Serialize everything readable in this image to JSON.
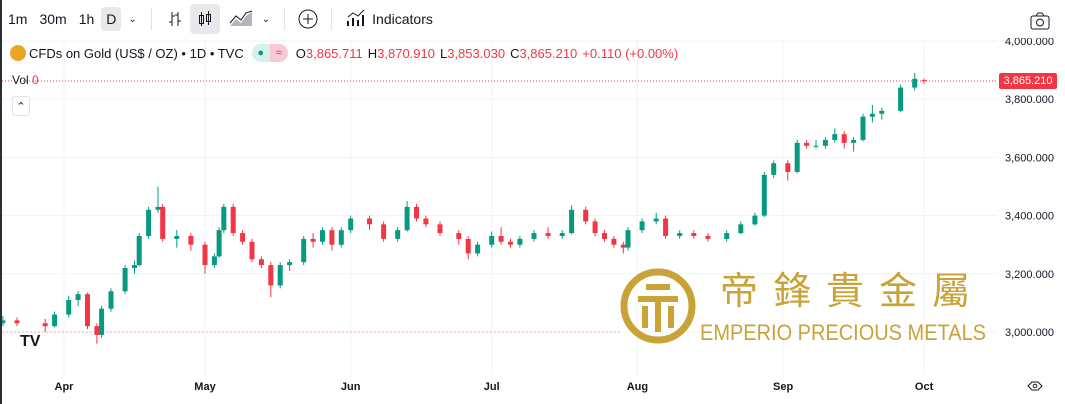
{
  "toolbar": {
    "intervals": [
      "1m",
      "30m",
      "1h",
      "D"
    ],
    "indicators_label": "Indicators",
    "icons": [
      "bars-icon",
      "candles-icon",
      "area-chart-icon",
      "chevron-down-icon",
      "add-compare-icon",
      "indicators-icon",
      "camera-icon"
    ]
  },
  "legend": {
    "symbol": "CFDs on Gold (US$ / OZ) • 1D • TVC",
    "o_label": "O",
    "o": "3,865.711",
    "h_label": "H",
    "h": "3,870.910",
    "l_label": "L",
    "l": "3,853.030",
    "c_label": "C",
    "c": "3,865.210",
    "change": "+0.110 (+0.00%)",
    "vol_label": "Vol",
    "vol": "0"
  },
  "watermark": {
    "chinese": "帝鋒貴金屬",
    "text": "EMPERIO PRECIOUS METALS"
  },
  "colors": {
    "up": "#089981",
    "down": "#f23645",
    "gold": "#c9a338"
  },
  "chart_data": {
    "type": "candlestick",
    "title": "CFDs on Gold (US$ / OZ)",
    "yticks": [
      "4,000.000",
      "3,800.000",
      "3,600.000",
      "3,400.000",
      "3,200.000",
      "3,000.000"
    ],
    "ytick_values": [
      4000,
      3800,
      3600,
      3400,
      3200,
      3000
    ],
    "xticks": [
      "Apr",
      "May",
      "Jun",
      "Jul",
      "Aug",
      "Sep",
      "Oct"
    ],
    "xtick_dates": [
      "2025-04-01",
      "2025-05-01",
      "2025-06-01",
      "2025-07-01",
      "2025-08-01",
      "2025-09-01",
      "2025-10-01"
    ],
    "ylim": [
      2880,
      4040
    ],
    "last_price": "3,865.210",
    "candles": [
      [
        "2025-03-19",
        3030,
        3055,
        3020,
        3040
      ],
      [
        "2025-03-22",
        3040,
        3050,
        3020,
        3030
      ],
      [
        "2025-03-28",
        3030,
        3045,
        3000,
        3020
      ],
      [
        "2025-03-30",
        3020,
        3070,
        3015,
        3060
      ],
      [
        "2025-04-02",
        3060,
        3125,
        3050,
        3110
      ],
      [
        "2025-04-04",
        3110,
        3140,
        3090,
        3130
      ],
      [
        "2025-04-06",
        3130,
        3135,
        3010,
        3020
      ],
      [
        "2025-04-08",
        3020,
        3030,
        2960,
        2990
      ],
      [
        "2025-04-09",
        2990,
        3090,
        2980,
        3080
      ],
      [
        "2025-04-11",
        3080,
        3150,
        3070,
        3140
      ],
      [
        "2025-04-14",
        3140,
        3230,
        3130,
        3220
      ],
      [
        "2025-04-16",
        3220,
        3245,
        3200,
        3230
      ],
      [
        "2025-04-17",
        3230,
        3340,
        3225,
        3330
      ],
      [
        "2025-04-19",
        3330,
        3430,
        3320,
        3420
      ],
      [
        "2025-04-21",
        3420,
        3500,
        3410,
        3430
      ],
      [
        "2025-04-22",
        3430,
        3440,
        3310,
        3320
      ],
      [
        "2025-04-25",
        3320,
        3350,
        3290,
        3330
      ],
      [
        "2025-04-28",
        3330,
        3340,
        3280,
        3300
      ],
      [
        "2025-05-01",
        3300,
        3310,
        3200,
        3230
      ],
      [
        "2025-05-03",
        3230,
        3270,
        3220,
        3260
      ],
      [
        "2025-05-04",
        3260,
        3360,
        3255,
        3350
      ],
      [
        "2025-05-05",
        3350,
        3440,
        3340,
        3430
      ],
      [
        "2025-05-07",
        3430,
        3440,
        3330,
        3340
      ],
      [
        "2025-05-09",
        3340,
        3350,
        3300,
        3310
      ],
      [
        "2025-05-11",
        3310,
        3320,
        3240,
        3250
      ],
      [
        "2025-05-13",
        3250,
        3260,
        3220,
        3230
      ],
      [
        "2025-05-15",
        3230,
        3240,
        3120,
        3160
      ],
      [
        "2025-05-17",
        3160,
        3240,
        3150,
        3230
      ],
      [
        "2025-05-19",
        3230,
        3250,
        3210,
        3240
      ],
      [
        "2025-05-22",
        3240,
        3330,
        3230,
        3320
      ],
      [
        "2025-05-24",
        3320,
        3340,
        3290,
        3310
      ],
      [
        "2025-05-26",
        3310,
        3360,
        3300,
        3350
      ],
      [
        "2025-05-28",
        3350,
        3360,
        3280,
        3300
      ],
      [
        "2025-05-30",
        3300,
        3360,
        3290,
        3350
      ],
      [
        "2025-06-01",
        3350,
        3400,
        3340,
        3390
      ],
      [
        "2025-06-05",
        3390,
        3400,
        3350,
        3370
      ],
      [
        "2025-06-08",
        3370,
        3380,
        3310,
        3320
      ],
      [
        "2025-06-11",
        3320,
        3360,
        3310,
        3350
      ],
      [
        "2025-06-13",
        3350,
        3450,
        3345,
        3430
      ],
      [
        "2025-06-15",
        3430,
        3440,
        3380,
        3390
      ],
      [
        "2025-06-17",
        3390,
        3400,
        3360,
        3370
      ],
      [
        "2025-06-20",
        3370,
        3380,
        3330,
        3340
      ],
      [
        "2025-06-24",
        3340,
        3350,
        3300,
        3320
      ],
      [
        "2025-06-26",
        3320,
        3330,
        3250,
        3270
      ],
      [
        "2025-06-28",
        3270,
        3310,
        3260,
        3300
      ],
      [
        "2025-07-01",
        3300,
        3345,
        3290,
        3330
      ],
      [
        "2025-07-03",
        3330,
        3360,
        3300,
        3310
      ],
      [
        "2025-07-05",
        3310,
        3320,
        3290,
        3300
      ],
      [
        "2025-07-07",
        3300,
        3330,
        3290,
        3320
      ],
      [
        "2025-07-10",
        3320,
        3350,
        3310,
        3340
      ],
      [
        "2025-07-13",
        3340,
        3360,
        3320,
        3330
      ],
      [
        "2025-07-16",
        3330,
        3350,
        3320,
        3340
      ],
      [
        "2025-07-18",
        3340,
        3435,
        3335,
        3420
      ],
      [
        "2025-07-21",
        3420,
        3430,
        3370,
        3380
      ],
      [
        "2025-07-23",
        3380,
        3390,
        3330,
        3340
      ],
      [
        "2025-07-25",
        3340,
        3350,
        3310,
        3320
      ],
      [
        "2025-07-27",
        3320,
        3330,
        3290,
        3300
      ],
      [
        "2025-07-29",
        3300,
        3310,
        3270,
        3290
      ],
      [
        "2025-07-30",
        3290,
        3360,
        3280,
        3350
      ],
      [
        "2025-08-02",
        3350,
        3390,
        3340,
        3380
      ],
      [
        "2025-08-05",
        3380,
        3410,
        3370,
        3390
      ],
      [
        "2025-08-07",
        3390,
        3400,
        3320,
        3330
      ],
      [
        "2025-08-10",
        3330,
        3350,
        3320,
        3340
      ],
      [
        "2025-08-13",
        3340,
        3350,
        3320,
        3330
      ],
      [
        "2025-08-16",
        3330,
        3340,
        3310,
        3320
      ],
      [
        "2025-08-20",
        3320,
        3350,
        3310,
        3340
      ],
      [
        "2025-08-23",
        3340,
        3380,
        3335,
        3370
      ],
      [
        "2025-08-26",
        3370,
        3410,
        3365,
        3400
      ],
      [
        "2025-08-28",
        3400,
        3550,
        3395,
        3540
      ],
      [
        "2025-08-30",
        3540,
        3590,
        3530,
        3580
      ],
      [
        "2025-09-02",
        3580,
        3590,
        3520,
        3550
      ],
      [
        "2025-09-04",
        3550,
        3660,
        3545,
        3650
      ],
      [
        "2025-09-06",
        3650,
        3660,
        3630,
        3640
      ],
      [
        "2025-09-08",
        3640,
        3660,
        3630,
        3640
      ],
      [
        "2025-09-10",
        3640,
        3670,
        3630,
        3660
      ],
      [
        "2025-09-12",
        3660,
        3700,
        3650,
        3680
      ],
      [
        "2025-09-14",
        3680,
        3690,
        3630,
        3650
      ],
      [
        "2025-09-16",
        3650,
        3670,
        3620,
        3660
      ],
      [
        "2025-09-18",
        3660,
        3750,
        3655,
        3740
      ],
      [
        "2025-09-20",
        3740,
        3780,
        3720,
        3750
      ],
      [
        "2025-09-22",
        3750,
        3770,
        3730,
        3760
      ],
      [
        "2025-09-26",
        3760,
        3850,
        3755,
        3840
      ],
      [
        "2025-09-29",
        3840,
        3890,
        3830,
        3870
      ],
      [
        "2025-10-01",
        3865.711,
        3870.91,
        3853.03,
        3865.21
      ]
    ]
  }
}
